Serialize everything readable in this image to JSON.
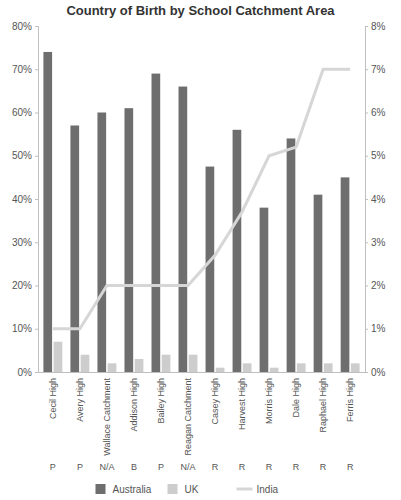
{
  "chart_data": {
    "type": "bar",
    "title": "Country of Birth by School Catchment Area",
    "categories": [
      "Cecil High",
      "Avery High",
      "Wallace Catchment",
      "Addison High",
      "Bailey High",
      "Reagan Catchment",
      "Casey High",
      "Harvest High",
      "Morris High",
      "Dale High",
      "Raphael High",
      "Ferris High"
    ],
    "x_sublabels": [
      "P",
      "P",
      "N/A",
      "B",
      "P",
      "N/A",
      "R",
      "R",
      "R",
      "R",
      "R",
      "R"
    ],
    "series": [
      {
        "name": "Australia",
        "color": "#6e6e6e",
        "values": [
          74,
          57,
          60,
          61,
          69,
          66,
          47.5,
          56,
          38,
          54,
          41,
          45
        ]
      },
      {
        "name": "UK",
        "color": "#cdcdcd",
        "values": [
          7,
          4,
          2,
          3,
          4,
          4,
          1,
          2,
          1,
          2,
          2,
          2
        ]
      },
      {
        "name": "India",
        "color": "#d6d6d6",
        "type": "line",
        "axis": "y2",
        "values": [
          1,
          1,
          2,
          2,
          2,
          2,
          2.7,
          3.7,
          5,
          5.2,
          7,
          7
        ]
      }
    ],
    "ylim": [
      0,
      80
    ],
    "yticks": [
      {
        "value": 0,
        "label": "0%"
      },
      {
        "value": 10,
        "label": "10%"
      },
      {
        "value": 20,
        "label": "20%"
      },
      {
        "value": 30,
        "label": "30%"
      },
      {
        "value": 40,
        "label": "40%"
      },
      {
        "value": 50,
        "label": "50%"
      },
      {
        "value": 60,
        "label": "60%"
      },
      {
        "value": 70,
        "label": "70%"
      },
      {
        "value": 80,
        "label": "80%"
      }
    ],
    "y2lim": [
      0,
      8
    ],
    "y2ticks": [
      {
        "value": 0,
        "label": "0%"
      },
      {
        "value": 1,
        "label": "1%"
      },
      {
        "value": 2,
        "label": "2%"
      },
      {
        "value": 3,
        "label": "3%"
      },
      {
        "value": 4,
        "label": "4%"
      },
      {
        "value": 5,
        "label": "5%"
      },
      {
        "value": 6,
        "label": "6%"
      },
      {
        "value": 7,
        "label": "7%"
      },
      {
        "value": 8,
        "label": "8%"
      }
    ],
    "grid": false,
    "legend": "bottom"
  }
}
